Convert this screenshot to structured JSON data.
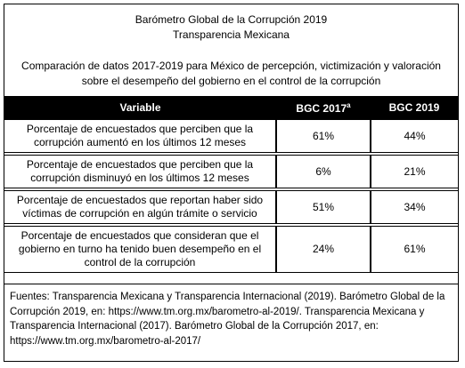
{
  "header": {
    "title": [
      "Barómetro Global de la Corrupción 2019",
      "Transparencia Mexicana"
    ],
    "description": "Comparación de datos 2017-2019 para México de percepción, victimización y valoración sobre el desempeño del gobierno en el control de la corrupción"
  },
  "table": {
    "columns": [
      {
        "text": "Variable"
      },
      {
        "text": "BGC 2017",
        "note": "a"
      },
      {
        "text": "BGC 2019"
      }
    ],
    "rows": [
      [
        "Porcentaje de encuestados que perciben que la corrupción aumentó en los últimos 12 meses",
        "61%",
        "44%"
      ],
      [
        "Porcentaje de encuestados que perciben que la corrupción disminuyó en los últimos 12 meses",
        "6%",
        "21%"
      ],
      [
        "Porcentaje de encuestados que reportan haber sido víctimas de corrupción en algún trámite o servicio",
        "51%",
        "34%"
      ],
      [
        "Porcentaje de encuestados que consideran que el gobierno en turno ha tenido buen desempeño en el control de la corrupción",
        "24%",
        "61%"
      ]
    ]
  },
  "footer": "Fuentes: Transparencia Mexicana y Transparencia Internacional (2019). Barómetro Global de la Corrupción 2019, en: https://www.tm.org.mx/barometro-al-2019/. Transparencia Mexicana y Transparencia Internacional (2017). Barómetro Global de la Corrupción 2017, en: https://www.tm.org.mx/barometro-al-2017/"
}
